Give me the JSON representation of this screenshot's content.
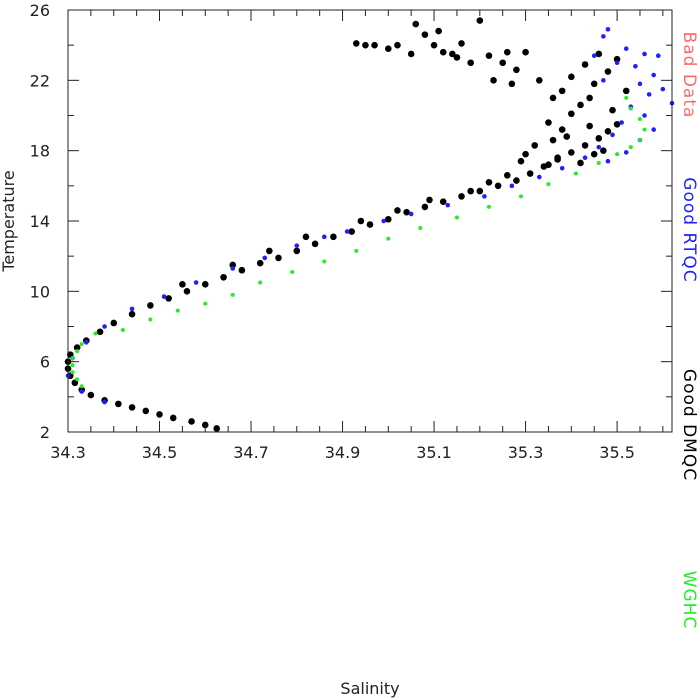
{
  "chart_data": {
    "type": "scatter",
    "xlabel": "Salinity",
    "ylabel": "Temperature",
    "xlim": [
      34.3,
      35.62
    ],
    "ylim": [
      2,
      26
    ],
    "x_ticks": [
      "34.3",
      "34.5",
      "34.7",
      "34.9",
      "35.1",
      "35.3",
      "35.5"
    ],
    "y_ticks": [
      "2",
      "6",
      "10",
      "14",
      "18",
      "22",
      "26"
    ],
    "grid": false,
    "legend_placement": "right-outside-vertical",
    "series": [
      {
        "name": "Bad Data",
        "color": "#ff6b6b",
        "points": []
      },
      {
        "name": "Good RTQC",
        "color": "#1f1fff",
        "points": [
          [
            35.48,
            24.9
          ],
          [
            35.47,
            24.5
          ],
          [
            35.52,
            23.8
          ],
          [
            35.45,
            23.4
          ],
          [
            35.56,
            23.5
          ],
          [
            35.59,
            23.4
          ],
          [
            35.5,
            23.0
          ],
          [
            35.54,
            22.8
          ],
          [
            35.58,
            22.3
          ],
          [
            35.47,
            22.0
          ],
          [
            35.55,
            21.8
          ],
          [
            35.6,
            21.5
          ],
          [
            35.57,
            21.2
          ],
          [
            35.62,
            20.7
          ],
          [
            35.53,
            20.5
          ],
          [
            35.56,
            20.0
          ],
          [
            35.51,
            19.6
          ],
          [
            35.58,
            19.2
          ],
          [
            35.49,
            18.9
          ],
          [
            35.55,
            18.6
          ],
          [
            35.46,
            18.2
          ],
          [
            35.52,
            17.9
          ],
          [
            35.43,
            17.6
          ],
          [
            35.48,
            17.4
          ],
          [
            35.38,
            17.0
          ],
          [
            35.33,
            16.5
          ],
          [
            35.27,
            16.0
          ],
          [
            35.21,
            15.4
          ],
          [
            35.13,
            14.9
          ],
          [
            35.05,
            14.4
          ],
          [
            34.99,
            14.0
          ],
          [
            34.91,
            13.4
          ],
          [
            34.86,
            13.1
          ],
          [
            34.8,
            12.6
          ],
          [
            34.73,
            11.9
          ],
          [
            34.66,
            11.3
          ],
          [
            34.58,
            10.5
          ],
          [
            34.51,
            9.7
          ],
          [
            34.44,
            9.0
          ],
          [
            34.38,
            8.0
          ],
          [
            34.34,
            7.1
          ],
          [
            34.31,
            6.2
          ],
          [
            34.3,
            5.2
          ],
          [
            34.33,
            4.3
          ],
          [
            34.38,
            3.7
          ]
        ]
      },
      {
        "name": "Good DMQC",
        "color": "#000000",
        "points": [
          [
            34.625,
            2.2
          ],
          [
            34.6,
            2.4
          ],
          [
            34.57,
            2.6
          ],
          [
            34.53,
            2.8
          ],
          [
            34.5,
            3.0
          ],
          [
            34.47,
            3.2
          ],
          [
            34.44,
            3.4
          ],
          [
            34.41,
            3.6
          ],
          [
            34.38,
            3.8
          ],
          [
            34.35,
            4.1
          ],
          [
            34.33,
            4.4
          ],
          [
            34.315,
            4.8
          ],
          [
            34.305,
            5.2
          ],
          [
            34.3,
            5.6
          ],
          [
            34.3,
            6.0
          ],
          [
            34.305,
            6.4
          ],
          [
            34.32,
            6.8
          ],
          [
            34.34,
            7.2
          ],
          [
            34.37,
            7.7
          ],
          [
            34.4,
            8.2
          ],
          [
            34.44,
            8.7
          ],
          [
            34.48,
            9.2
          ],
          [
            34.52,
            9.6
          ],
          [
            34.56,
            10.0
          ],
          [
            34.6,
            10.4
          ],
          [
            34.64,
            10.8
          ],
          [
            34.68,
            11.2
          ],
          [
            34.72,
            11.6
          ],
          [
            34.76,
            11.9
          ],
          [
            34.8,
            12.3
          ],
          [
            34.84,
            12.7
          ],
          [
            34.88,
            13.1
          ],
          [
            34.92,
            13.4
          ],
          [
            34.96,
            13.8
          ],
          [
            35.0,
            14.1
          ],
          [
            35.04,
            14.5
          ],
          [
            35.08,
            14.8
          ],
          [
            35.12,
            15.1
          ],
          [
            35.16,
            15.4
          ],
          [
            35.2,
            15.7
          ],
          [
            35.24,
            16.0
          ],
          [
            35.28,
            16.3
          ],
          [
            35.31,
            16.7
          ],
          [
            35.34,
            17.1
          ],
          [
            35.37,
            17.5
          ],
          [
            35.4,
            17.9
          ],
          [
            35.43,
            18.3
          ],
          [
            35.46,
            18.7
          ],
          [
            35.48,
            19.1
          ],
          [
            35.5,
            19.5
          ],
          [
            35.3,
            17.8
          ],
          [
            35.32,
            18.3
          ],
          [
            35.36,
            18.6
          ],
          [
            35.38,
            19.2
          ],
          [
            35.35,
            19.6
          ],
          [
            35.4,
            20.1
          ],
          [
            35.42,
            20.6
          ],
          [
            35.44,
            21.0
          ],
          [
            35.38,
            21.4
          ],
          [
            35.45,
            21.8
          ],
          [
            35.4,
            22.2
          ],
          [
            35.48,
            22.5
          ],
          [
            35.43,
            22.9
          ],
          [
            35.5,
            23.2
          ],
          [
            35.46,
            23.5
          ],
          [
            35.52,
            21.4
          ],
          [
            35.49,
            20.3
          ],
          [
            35.36,
            21.0
          ],
          [
            35.33,
            22.0
          ],
          [
            35.28,
            22.6
          ],
          [
            35.25,
            23.0
          ],
          [
            35.22,
            23.4
          ],
          [
            35.3,
            23.6
          ],
          [
            35.27,
            21.8
          ],
          [
            35.23,
            22.0
          ],
          [
            35.18,
            23.0
          ],
          [
            35.15,
            23.3
          ],
          [
            35.12,
            23.6
          ],
          [
            35.1,
            24.0
          ],
          [
            35.08,
            24.6
          ],
          [
            35.06,
            25.2
          ],
          [
            35.11,
            24.8
          ],
          [
            35.2,
            25.4
          ],
          [
            35.16,
            24.1
          ],
          [
            35.02,
            24.0
          ],
          [
            34.95,
            24.0
          ],
          [
            34.93,
            24.1
          ],
          [
            34.97,
            24.0
          ],
          [
            35.0,
            23.8
          ],
          [
            35.05,
            23.5
          ],
          [
            35.14,
            23.5
          ],
          [
            35.26,
            23.6
          ],
          [
            35.42,
            17.3
          ],
          [
            35.45,
            17.8
          ],
          [
            35.47,
            18.0
          ],
          [
            35.39,
            18.8
          ],
          [
            35.44,
            19.4
          ],
          [
            35.37,
            17.6
          ],
          [
            35.35,
            17.2
          ],
          [
            35.29,
            17.4
          ],
          [
            35.26,
            16.6
          ],
          [
            35.22,
            16.2
          ],
          [
            35.18,
            15.7
          ],
          [
            35.09,
            15.2
          ],
          [
            35.02,
            14.6
          ],
          [
            34.94,
            14.0
          ],
          [
            34.82,
            13.1
          ],
          [
            34.74,
            12.3
          ],
          [
            34.66,
            11.5
          ],
          [
            34.55,
            10.4
          ]
        ]
      },
      {
        "name": "WGHC",
        "color": "#22ee22",
        "points": [
          [
            34.33,
            7.0
          ],
          [
            34.32,
            6.6
          ],
          [
            34.31,
            6.2
          ],
          [
            34.31,
            5.8
          ],
          [
            34.31,
            5.4
          ],
          [
            34.32,
            5.0
          ],
          [
            34.33,
            4.6
          ],
          [
            34.36,
            7.6
          ],
          [
            34.42,
            7.8
          ],
          [
            34.48,
            8.4
          ],
          [
            34.54,
            8.9
          ],
          [
            34.6,
            9.3
          ],
          [
            34.66,
            9.8
          ],
          [
            34.72,
            10.5
          ],
          [
            34.79,
            11.1
          ],
          [
            34.86,
            11.7
          ],
          [
            34.93,
            12.3
          ],
          [
            35.0,
            13.0
          ],
          [
            35.07,
            13.6
          ],
          [
            35.15,
            14.2
          ],
          [
            35.22,
            14.8
          ],
          [
            35.29,
            15.4
          ],
          [
            35.35,
            16.1
          ],
          [
            35.41,
            16.7
          ],
          [
            35.46,
            17.3
          ],
          [
            35.5,
            17.8
          ],
          [
            35.53,
            18.2
          ],
          [
            35.55,
            18.6
          ],
          [
            35.56,
            19.2
          ],
          [
            35.55,
            19.8
          ],
          [
            35.53,
            20.4
          ],
          [
            35.52,
            21.0
          ]
        ]
      }
    ]
  }
}
